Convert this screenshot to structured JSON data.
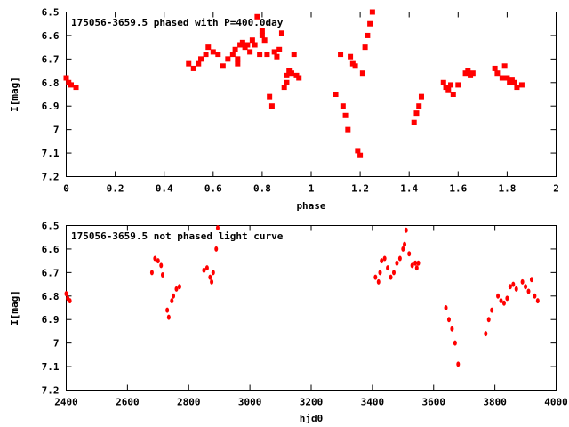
{
  "chart_data": [
    {
      "type": "scatter",
      "title": "175056-3659.5 phased with P=400.0day",
      "xlabel": "phase",
      "ylabel": "I[mag]",
      "xlim": [
        0,
        2
      ],
      "ylim": [
        6.5,
        7.2
      ],
      "y_inverted": true,
      "xticks": [
        "0",
        "0.2",
        "0.4",
        "0.6",
        "0.8",
        "1",
        "1.2",
        "1.4",
        "1.6",
        "1.8",
        "2"
      ],
      "yticks": [
        "6.5",
        "6.6",
        "6.7",
        "6.8",
        "6.9",
        "7",
        "7.1",
        "7.2"
      ],
      "marker_color": "#ff0000",
      "series": [
        {
          "x": [
            0.0,
            0.01,
            0.02,
            0.04,
            0.5,
            0.52,
            0.54,
            0.55,
            0.57,
            0.58,
            0.6,
            0.62,
            0.64,
            0.66,
            0.68,
            0.69,
            0.7,
            0.7,
            0.71,
            0.72,
            0.73,
            0.74,
            0.75,
            0.76,
            0.77,
            0.78,
            0.79,
            0.8,
            0.8,
            0.81,
            0.82,
            0.83,
            0.84,
            0.85,
            0.86,
            0.87,
            0.88,
            0.89,
            0.9,
            0.9,
            0.91,
            0.92,
            0.93,
            0.94,
            0.95,
            1.1,
            1.12,
            1.13,
            1.14,
            1.15,
            1.16,
            1.17,
            1.18,
            1.19,
            1.2,
            1.21,
            1.22,
            1.23,
            1.24,
            1.25,
            1.42,
            1.43,
            1.44,
            1.45,
            1.54,
            1.55,
            1.56,
            1.57,
            1.58,
            1.6,
            1.63,
            1.64,
            1.65,
            1.66,
            1.75,
            1.76,
            1.78,
            1.79,
            1.8,
            1.81,
            1.82,
            1.83,
            1.84,
            1.86
          ],
          "y": [
            6.78,
            6.8,
            6.81,
            6.82,
            6.72,
            6.74,
            6.72,
            6.7,
            6.68,
            6.65,
            6.67,
            6.68,
            6.73,
            6.7,
            6.68,
            6.66,
            6.7,
            6.72,
            6.64,
            6.63,
            6.65,
            6.64,
            6.67,
            6.62,
            6.64,
            6.52,
            6.68,
            6.6,
            6.58,
            6.62,
            6.68,
            6.86,
            6.9,
            6.67,
            6.69,
            6.66,
            6.59,
            6.82,
            6.8,
            6.77,
            6.75,
            6.76,
            6.68,
            6.77,
            6.78,
            6.85,
            6.68,
            6.9,
            6.94,
            7.0,
            6.69,
            6.72,
            6.73,
            7.09,
            7.11,
            6.76,
            6.65,
            6.6,
            6.55,
            6.5,
            6.97,
            6.93,
            6.9,
            6.86,
            6.8,
            6.82,
            6.83,
            6.81,
            6.85,
            6.81,
            6.76,
            6.75,
            6.77,
            6.76,
            6.74,
            6.76,
            6.78,
            6.73,
            6.78,
            6.8,
            6.79,
            6.8,
            6.82,
            6.81
          ]
        }
      ]
    },
    {
      "type": "scatter",
      "title": "175056-3659.5 not phased light curve",
      "xlabel": "hjd0",
      "ylabel": "I[mag]",
      "xlim": [
        2400,
        4000
      ],
      "ylim": [
        6.5,
        7.2
      ],
      "y_inverted": true,
      "xticks": [
        "2400",
        "2600",
        "2800",
        "3000",
        "3200",
        "3400",
        "3600",
        "3800",
        "4000"
      ],
      "yticks": [
        "6.5",
        "6.6",
        "6.7",
        "6.8",
        "6.9",
        "7",
        "7.1",
        "7.2"
      ],
      "marker_color": "#ff0000",
      "series": [
        {
          "x": [
            2400,
            2405,
            2412,
            2680,
            2690,
            2700,
            2710,
            2715,
            2730,
            2735,
            2745,
            2750,
            2760,
            2770,
            2850,
            2860,
            2870,
            2875,
            2880,
            2890,
            2895,
            3410,
            3420,
            3425,
            3430,
            3440,
            3450,
            3460,
            3470,
            3480,
            3490,
            3500,
            3505,
            3510,
            3520,
            3530,
            3540,
            3545,
            3550,
            3640,
            3650,
            3660,
            3670,
            3680,
            3770,
            3780,
            3790,
            3810,
            3820,
            3830,
            3840,
            3850,
            3860,
            3870,
            3890,
            3900,
            3910,
            3920,
            3930,
            3940
          ],
          "y": [
            6.79,
            6.81,
            6.82,
            6.7,
            6.64,
            6.65,
            6.67,
            6.71,
            6.86,
            6.89,
            6.82,
            6.8,
            6.77,
            6.76,
            6.69,
            6.68,
            6.72,
            6.74,
            6.7,
            6.6,
            6.51,
            6.72,
            6.74,
            6.7,
            6.65,
            6.64,
            6.68,
            6.72,
            6.7,
            6.66,
            6.64,
            6.6,
            6.58,
            6.52,
            6.62,
            6.67,
            6.66,
            6.68,
            6.66,
            6.85,
            6.9,
            6.94,
            7.0,
            7.09,
            6.96,
            6.9,
            6.86,
            6.8,
            6.82,
            6.83,
            6.81,
            6.76,
            6.75,
            6.77,
            6.74,
            6.76,
            6.78,
            6.73,
            6.8,
            6.82
          ]
        }
      ]
    }
  ]
}
